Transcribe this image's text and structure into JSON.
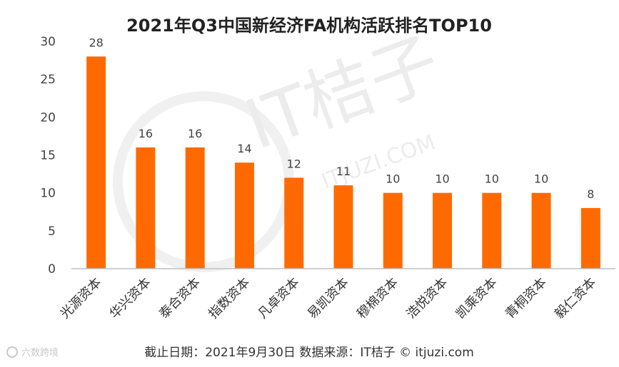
{
  "chart_data": {
    "type": "bar",
    "title": "2021年Q3中国新经济FA机构活跃排名TOP10",
    "categories": [
      "光源资本",
      "华兴资本",
      "泰合资本",
      "指数资本",
      "凡卓资本",
      "易凯资本",
      "穆棉资本",
      "浩悦资本",
      "凯乘资本",
      "青桐资本",
      "毅仁资本"
    ],
    "values": [
      28,
      16,
      16,
      14,
      12,
      11,
      10,
      10,
      10,
      10,
      8
    ],
    "ylim": [
      0,
      30
    ],
    "yticks": [
      "0",
      "5",
      "10",
      "15",
      "20",
      "25",
      "30"
    ],
    "grid": false,
    "legend": "none",
    "bar_color": "#ff6a00"
  },
  "footer": "截止日期：2021年9月30日   数据来源：IT桔子 © itjuzi.com",
  "watermark": {
    "main": "IT桔子",
    "sub": "ITJUZI.COM",
    "corner": "六数跨境"
  }
}
